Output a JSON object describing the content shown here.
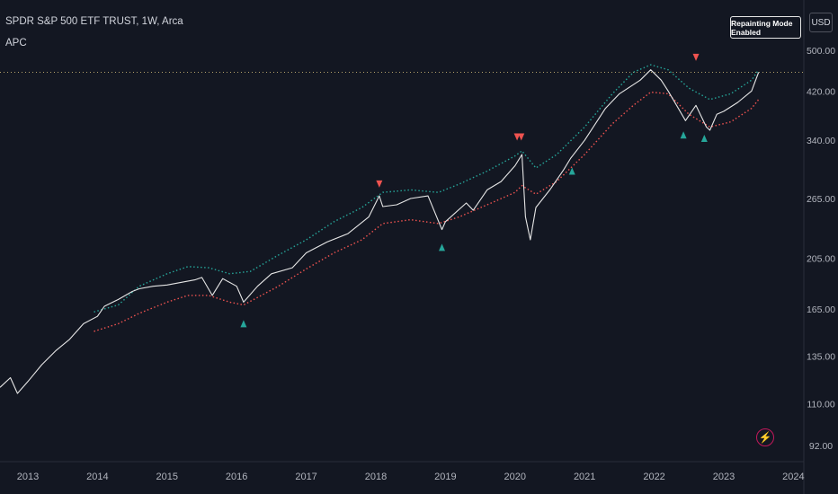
{
  "header": {
    "symbol_line": "SPDR S&P 500 ETF TRUST, 1W, Arca",
    "indicator": "APC"
  },
  "badge": "Repainting Mode Enabled",
  "currency": "USD",
  "colors": {
    "background": "#131722",
    "price": "#e6e6e6",
    "upper_band": "#26a69a",
    "lower_band": "#ef5350",
    "buy_marker": "#26a69a",
    "sell_marker": "#ef5350",
    "reference_line": "#b5a36a",
    "axis_text": "#b2b5be"
  },
  "chart_data": {
    "type": "line",
    "title": "SPDR S&P 500 ETF TRUST, 1W, Arca",
    "ylim": [
      90,
      520
    ],
    "y_scale": "log",
    "xlim": [
      2012.6,
      2024.15
    ],
    "x_ticks": [
      "2013",
      "2014",
      "2015",
      "2016",
      "2017",
      "2018",
      "2019",
      "2020",
      "2021",
      "2022",
      "2023",
      "2024"
    ],
    "y_ticks": [
      "500.00",
      "420.00",
      "340.00",
      "265.00",
      "205.00",
      "165.00",
      "135.00",
      "110.00",
      "92.00"
    ],
    "reference_line": 455,
    "series": [
      {
        "role": "price",
        "x": [
          2012.6,
          2012.75,
          2012.85,
          2013.0,
          2013.2,
          2013.4,
          2013.6,
          2013.8,
          2014.0,
          2014.1,
          2014.3,
          2014.5,
          2014.6,
          2014.8,
          2015.0,
          2015.2,
          2015.4,
          2015.5,
          2015.65,
          2015.8,
          2016.0,
          2016.1,
          2016.3,
          2016.5,
          2016.8,
          2017.0,
          2017.3,
          2017.6,
          2017.9,
          2018.05,
          2018.1,
          2018.3,
          2018.5,
          2018.75,
          2018.95,
          2019.0,
          2019.3,
          2019.4,
          2019.6,
          2019.8,
          2020.0,
          2020.1,
          2020.15,
          2020.22,
          2020.3,
          2020.5,
          2020.7,
          2020.8,
          2021.0,
          2021.3,
          2021.5,
          2021.8,
          2021.95,
          2022.1,
          2022.2,
          2022.45,
          2022.6,
          2022.75,
          2022.8,
          2022.9,
          2023.0,
          2023.2,
          2023.4,
          2023.5
        ],
        "y": [
          118,
          123,
          115,
          121,
          130,
          138,
          145,
          155,
          160,
          167,
          172,
          178,
          180,
          182,
          183,
          185,
          187,
          189,
          175,
          188,
          182,
          170,
          182,
          192,
          197,
          210,
          220,
          228,
          245,
          268,
          256,
          258,
          265,
          268,
          232,
          240,
          260,
          252,
          275,
          285,
          305,
          320,
          245,
          222,
          255,
          275,
          300,
          315,
          340,
          390,
          415,
          440,
          460,
          440,
          420,
          370,
          395,
          360,
          355,
          380,
          385,
          400,
          420,
          455
        ]
      },
      {
        "role": "upper band",
        "x": [
          2013.95,
          2014.3,
          2014.6,
          2015.0,
          2015.3,
          2015.6,
          2015.9,
          2016.2,
          2016.6,
          2017.0,
          2017.4,
          2017.8,
          2018.1,
          2018.5,
          2018.9,
          2019.2,
          2019.6,
          2020.0,
          2020.1,
          2020.3,
          2020.6,
          2021.0,
          2021.4,
          2021.7,
          2021.95,
          2022.2,
          2022.5,
          2022.8,
          2023.1,
          2023.4,
          2023.5
        ],
        "y": [
          163,
          168,
          182,
          192,
          198,
          197,
          192,
          194,
          208,
          222,
          240,
          255,
          272,
          275,
          272,
          282,
          298,
          318,
          325,
          302,
          320,
          360,
          415,
          455,
          470,
          460,
          425,
          405,
          415,
          440,
          460
        ]
      },
      {
        "role": "lower band",
        "x": [
          2013.95,
          2014.3,
          2014.6,
          2015.0,
          2015.3,
          2015.6,
          2015.9,
          2016.1,
          2016.6,
          2017.0,
          2017.4,
          2017.8,
          2018.1,
          2018.5,
          2018.9,
          2019.2,
          2019.6,
          2020.0,
          2020.1,
          2020.3,
          2020.6,
          2021.0,
          2021.4,
          2021.7,
          2021.95,
          2022.2,
          2022.5,
          2022.8,
          2023.1,
          2023.4,
          2023.5
        ],
        "y": [
          150,
          155,
          162,
          170,
          175,
          175,
          170,
          168,
          182,
          196,
          210,
          222,
          238,
          242,
          238,
          245,
          258,
          272,
          280,
          270,
          285,
          320,
          365,
          395,
          418,
          415,
          380,
          360,
          368,
          390,
          405
        ]
      }
    ],
    "markers": [
      {
        "type": "sell",
        "x": 2018.05,
        "y": 282
      },
      {
        "type": "sell",
        "x": 2020.03,
        "y": 345
      },
      {
        "type": "sell",
        "x": 2020.09,
        "y": 345
      },
      {
        "type": "sell",
        "x": 2022.6,
        "y": 485
      },
      {
        "type": "buy",
        "x": 2016.1,
        "y": 155
      },
      {
        "type": "buy",
        "x": 2018.95,
        "y": 215
      },
      {
        "type": "buy",
        "x": 2020.82,
        "y": 298
      },
      {
        "type": "buy",
        "x": 2022.42,
        "y": 348
      },
      {
        "type": "buy",
        "x": 2022.72,
        "y": 343
      }
    ]
  }
}
